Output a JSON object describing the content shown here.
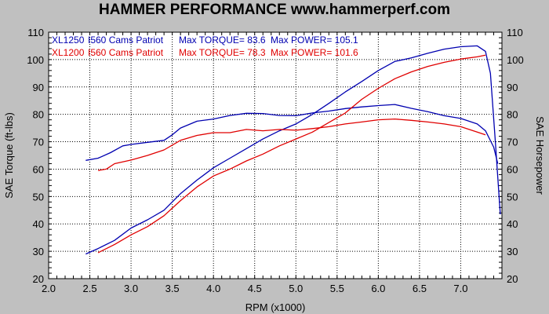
{
  "header": {
    "title": "HAMMER PERFORMANCE www.hammerperf.com"
  },
  "chart_data": {
    "type": "line",
    "title": "HAMMER PERFORMANCE www.hammerperf.com",
    "xlabel": "RPM (x1000)",
    "ylabel_left": "SAE Torque (ft-lbs)",
    "ylabel_right": "SAE Horsepower",
    "xlim": [
      2.0,
      7.5
    ],
    "ylim": [
      20,
      110
    ],
    "x_ticks": [
      "2.0",
      "2.5",
      "3.0",
      "3.5",
      "4.0",
      "4.5",
      "5.0",
      "5.5",
      "6.0",
      "6.5",
      "7.0"
    ],
    "y_ticks": [
      "20",
      "30",
      "40",
      "50",
      "60",
      "70",
      "80",
      "90",
      "100",
      "110"
    ],
    "legend": [
      {
        "bike": "XL1250",
        "cams": "I560 Cams Patriot",
        "torque": "Max TORQUE= 83.6",
        "power": "Max POWER= 105.1",
        "color": "#0000b0"
      },
      {
        "bike": "XL1200",
        "cams": "I560 Cams Patriot",
        "torque": "Max TORQUE= 78.3",
        "power": "Max POWER= 101.6",
        "color": "#e00000"
      }
    ],
    "series": [
      {
        "name": "XL1250 I560 Cams Patriot torque",
        "color": "#0000b0",
        "x": [
          2.45,
          2.6,
          2.75,
          2.9,
          3.0,
          3.2,
          3.4,
          3.5,
          3.6,
          3.8,
          4.0,
          4.2,
          4.4,
          4.6,
          4.8,
          5.0,
          5.2,
          5.4,
          5.6,
          5.8,
          6.0,
          6.2,
          6.4,
          6.6,
          6.8,
          7.0,
          7.2,
          7.3,
          7.4,
          7.45
        ],
        "y": [
          63.2,
          64,
          66,
          68.5,
          69,
          69.8,
          70.5,
          72.5,
          75,
          77.5,
          78.3,
          79.6,
          80.4,
          80.3,
          79.6,
          79.5,
          80.5,
          81.2,
          82.1,
          82.7,
          83.2,
          83.6,
          82.2,
          81,
          79.5,
          78.5,
          76.5,
          74,
          68,
          62
        ]
      },
      {
        "name": "XL1250 I560 Cams Patriot power",
        "color": "#0000b0",
        "x": [
          2.45,
          2.6,
          2.8,
          3.0,
          3.2,
          3.4,
          3.6,
          3.8,
          4.0,
          4.2,
          4.4,
          4.6,
          4.8,
          5.0,
          5.2,
          5.4,
          5.6,
          5.8,
          6.0,
          6.2,
          6.4,
          6.6,
          6.8,
          7.0,
          7.2,
          7.3,
          7.36,
          7.42,
          7.48
        ],
        "y": [
          29,
          31,
          34,
          38.5,
          41.5,
          45,
          51,
          56,
          60.5,
          64,
          67.5,
          71,
          74,
          76.5,
          80,
          84,
          88.2,
          92,
          96,
          99.3,
          100.6,
          102.3,
          103.8,
          104.7,
          105,
          103,
          95,
          70,
          43.5
        ]
      },
      {
        "name": "XL1200 I560 Cams Patriot torque",
        "color": "#e00000",
        "x": [
          2.6,
          2.7,
          2.8,
          3.0,
          3.2,
          3.4,
          3.6,
          3.8,
          4.0,
          4.2,
          4.4,
          4.6,
          4.8,
          5.0,
          5.2,
          5.4,
          5.6,
          5.8,
          6.0,
          6.2,
          6.4,
          6.6,
          6.8,
          7.0,
          7.2,
          7.3
        ],
        "y": [
          59.5,
          60,
          62,
          63.3,
          65,
          67,
          70.5,
          72.3,
          73.3,
          73.3,
          74.5,
          74,
          74.5,
          74.2,
          74.8,
          75.5,
          76.5,
          77.2,
          78,
          78.3,
          77.8,
          77.2,
          76.5,
          75.5,
          73.5,
          72.5
        ]
      },
      {
        "name": "XL1200 I560 Cams Patriot power",
        "color": "#e00000",
        "x": [
          2.6,
          2.8,
          3.0,
          3.2,
          3.4,
          3.6,
          3.8,
          4.0,
          4.2,
          4.4,
          4.6,
          4.8,
          5.0,
          5.2,
          5.4,
          5.6,
          5.8,
          6.0,
          6.2,
          6.4,
          6.6,
          6.8,
          7.0,
          7.2,
          7.3
        ],
        "y": [
          29.5,
          32.5,
          36,
          39,
          43,
          48.5,
          53.5,
          57.5,
          60,
          63,
          65.5,
          68.5,
          71,
          73.5,
          77,
          80.5,
          85.5,
          89.5,
          93,
          95.5,
          97.5,
          99,
          100.2,
          101,
          101.6
        ]
      }
    ]
  }
}
